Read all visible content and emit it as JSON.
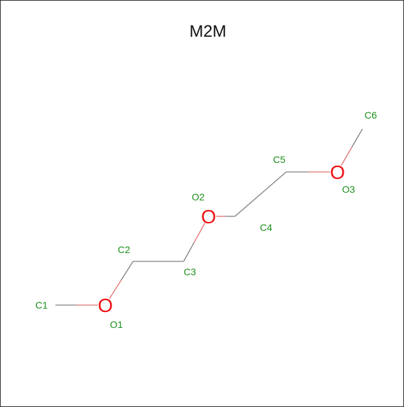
{
  "title": "M2M",
  "colors": {
    "carbon_label": "#1a8f1a",
    "oxygen": "#ee1111",
    "bond": "#808080",
    "bond_oxygen_side": "#e07070"
  },
  "atoms": [
    {
      "id": "C1",
      "element": "C",
      "label": "C1"
    },
    {
      "id": "O1",
      "element": "O",
      "symbol": "O",
      "label": "O1"
    },
    {
      "id": "C2",
      "element": "C",
      "label": "C2"
    },
    {
      "id": "C3",
      "element": "C",
      "label": "C3"
    },
    {
      "id": "O2",
      "element": "O",
      "symbol": "O",
      "label": "O2"
    },
    {
      "id": "C4",
      "element": "C",
      "label": "C4"
    },
    {
      "id": "C5",
      "element": "C",
      "label": "C5"
    },
    {
      "id": "O3",
      "element": "O",
      "symbol": "O",
      "label": "O3"
    },
    {
      "id": "C6",
      "element": "C",
      "label": "C6"
    }
  ],
  "bonds": [
    [
      "C1",
      "O1"
    ],
    [
      "O1",
      "C2"
    ],
    [
      "C2",
      "C3"
    ],
    [
      "C3",
      "O2"
    ],
    [
      "O2",
      "C4"
    ],
    [
      "C4",
      "C5"
    ],
    [
      "C5",
      "O3"
    ],
    [
      "O3",
      "C6"
    ]
  ]
}
